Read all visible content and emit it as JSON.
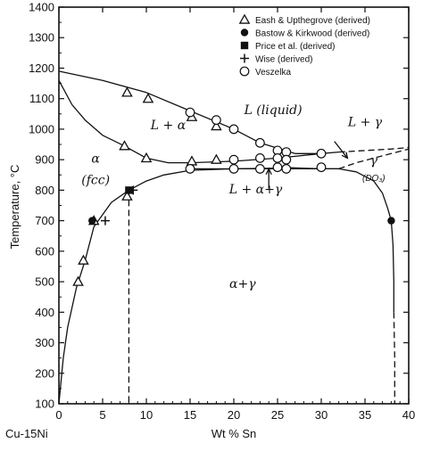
{
  "chart_data": {
    "type": "scatter",
    "title": "",
    "xlabel": "Wt % Sn",
    "ylabel": "Temperature, °C",
    "x_origin_label": "Cu-15Ni",
    "xlim": [
      0,
      40
    ],
    "ylim": [
      100,
      1400
    ],
    "x_ticks": [
      0,
      5,
      10,
      15,
      20,
      25,
      30,
      35,
      40
    ],
    "y_ticks": [
      100,
      200,
      300,
      400,
      500,
      600,
      700,
      800,
      900,
      1000,
      1100,
      1200,
      1300,
      1400
    ],
    "grid": false,
    "legend_position": "top-right",
    "series": [
      {
        "name": "Eash & Upthegrove (derived)",
        "marker": "open-triangle",
        "points": [
          [
            2.2,
            500
          ],
          [
            2.8,
            570
          ],
          [
            4.0,
            700
          ],
          [
            7.8,
            780
          ],
          [
            7.5,
            945
          ],
          [
            10.0,
            905
          ],
          [
            7.8,
            1120
          ],
          [
            10.2,
            1100
          ],
          [
            15.2,
            1040
          ],
          [
            15.2,
            895
          ],
          [
            18.0,
            1010
          ],
          [
            18.0,
            900
          ]
        ]
      },
      {
        "name": "Bastow & Kirkwood (derived)",
        "marker": "filled-circle",
        "points": [
          [
            3.8,
            700
          ],
          [
            38.0,
            700
          ]
        ]
      },
      {
        "name": "Price et al. (derived)",
        "marker": "filled-square",
        "points": [
          [
            8.0,
            800
          ]
        ]
      },
      {
        "name": "Wise (derived)",
        "marker": "plus",
        "points": [
          [
            5.3,
            700
          ],
          [
            8.5,
            800
          ]
        ]
      },
      {
        "name": "Veszelka",
        "marker": "open-circle",
        "points": [
          [
            15.0,
            1055
          ],
          [
            15.0,
            870
          ],
          [
            18.0,
            1030
          ],
          [
            20.0,
            1000
          ],
          [
            20.0,
            900
          ],
          [
            20.0,
            870
          ],
          [
            23.0,
            955
          ],
          [
            23.0,
            905
          ],
          [
            23.0,
            870
          ],
          [
            25.0,
            930
          ],
          [
            25.0,
            905
          ],
          [
            25.0,
            875
          ],
          [
            26.0,
            925
          ],
          [
            26.0,
            900
          ],
          [
            26.0,
            870
          ],
          [
            30.0,
            920
          ],
          [
            30.0,
            875
          ]
        ]
      }
    ],
    "phase_boundaries": [
      {
        "style": "solid",
        "points": [
          [
            0,
            1190
          ],
          [
            5,
            1160
          ],
          [
            10,
            1120
          ],
          [
            15,
            1060
          ],
          [
            20,
            1000
          ],
          [
            23,
            955
          ],
          [
            27,
            920
          ],
          [
            30,
            920
          ],
          [
            32,
            925
          ]
        ]
      },
      {
        "style": "solid",
        "points": [
          [
            0,
            1160
          ],
          [
            1.5,
            1080
          ],
          [
            3,
            1030
          ],
          [
            5,
            980
          ],
          [
            7.5,
            945
          ],
          [
            10,
            905
          ],
          [
            12.5,
            890
          ],
          [
            15,
            890
          ],
          [
            20,
            895
          ],
          [
            25,
            905
          ],
          [
            30,
            920
          ]
        ]
      },
      {
        "style": "solid",
        "points": [
          [
            0,
            100
          ],
          [
            0.5,
            250
          ],
          [
            1,
            350
          ],
          [
            2,
            480
          ],
          [
            3,
            570
          ],
          [
            4,
            680
          ],
          [
            6,
            760
          ],
          [
            8,
            800
          ],
          [
            10,
            830
          ],
          [
            12,
            850
          ],
          [
            15,
            865
          ],
          [
            20,
            870
          ],
          [
            25,
            872
          ]
        ]
      },
      {
        "style": "solid",
        "points": [
          [
            15,
            870
          ],
          [
            32,
            870
          ]
        ]
      },
      {
        "style": "solid",
        "points": [
          [
            25,
            875
          ],
          [
            30,
            870
          ],
          [
            32,
            870
          ],
          [
            34,
            860
          ],
          [
            36,
            830
          ],
          [
            37,
            790
          ],
          [
            37.6,
            740
          ],
          [
            38.0,
            700
          ],
          [
            38.2,
            620
          ],
          [
            38.3,
            500
          ],
          [
            38.3,
            400
          ]
        ]
      },
      {
        "style": "dashed",
        "points": [
          [
            38.3,
            400
          ],
          [
            38.4,
            250
          ],
          [
            38.4,
            100
          ]
        ]
      },
      {
        "style": "dashed",
        "points": [
          [
            32,
            925
          ],
          [
            35,
            930
          ],
          [
            38,
            935
          ],
          [
            40,
            940
          ]
        ]
      },
      {
        "style": "dashed",
        "points": [
          [
            32,
            870
          ],
          [
            34,
            890
          ],
          [
            36,
            905
          ],
          [
            38,
            920
          ],
          [
            40,
            935
          ]
        ]
      },
      {
        "style": "dashed",
        "points": [
          [
            8,
            800
          ],
          [
            8,
            100
          ]
        ]
      }
    ],
    "annotations": [
      {
        "text": "L (liquid)",
        "x": 24.5,
        "y": 1050
      },
      {
        "text": "L + α",
        "x": 12.5,
        "y": 1000
      },
      {
        "text": "α",
        "x": 4.2,
        "y": 890
      },
      {
        "text": "(fcc)",
        "x": 4.2,
        "y": 820
      },
      {
        "text": "L + γ",
        "x": 35.0,
        "y": 1010
      },
      {
        "text": "γ",
        "x": 36.0,
        "y": 885
      },
      {
        "text": "(DO₃)",
        "x": 36.0,
        "y": 830
      },
      {
        "text": "L + α+γ",
        "x": 22.5,
        "y": 790
      },
      {
        "text": "α+γ",
        "x": 21.0,
        "y": 480
      }
    ],
    "arrows": [
      {
        "from": [
          31.5,
          960
        ],
        "to": [
          33.0,
          905
        ]
      },
      {
        "from": [
          24.0,
          805
        ],
        "to": [
          24.0,
          870
        ]
      }
    ]
  }
}
